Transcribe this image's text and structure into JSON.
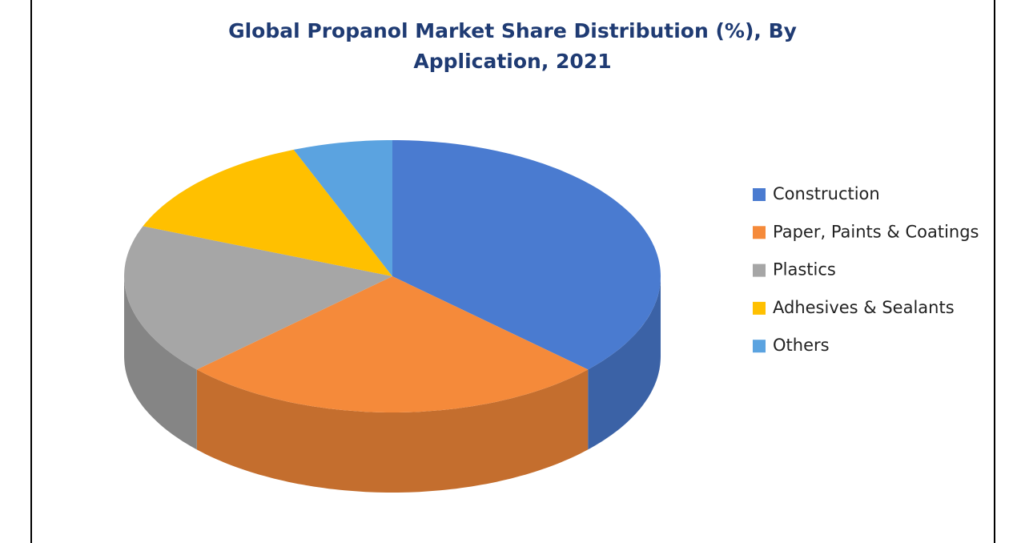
{
  "chart_data": {
    "type": "pie",
    "title": "Global Propanol Market Share Distribution (%), By Application, 2021",
    "categories": [
      "Construction",
      "Paper, Paints & Coatings",
      "Plastics",
      "Adhesives & Sealants",
      "Others"
    ],
    "values": [
      37,
      26,
      18,
      13,
      6
    ],
    "colors": [
      "#4a7bd0",
      "#f58a3a",
      "#a6a6a6",
      "#ffc000",
      "#5ba3e0"
    ],
    "legend": "right"
  }
}
